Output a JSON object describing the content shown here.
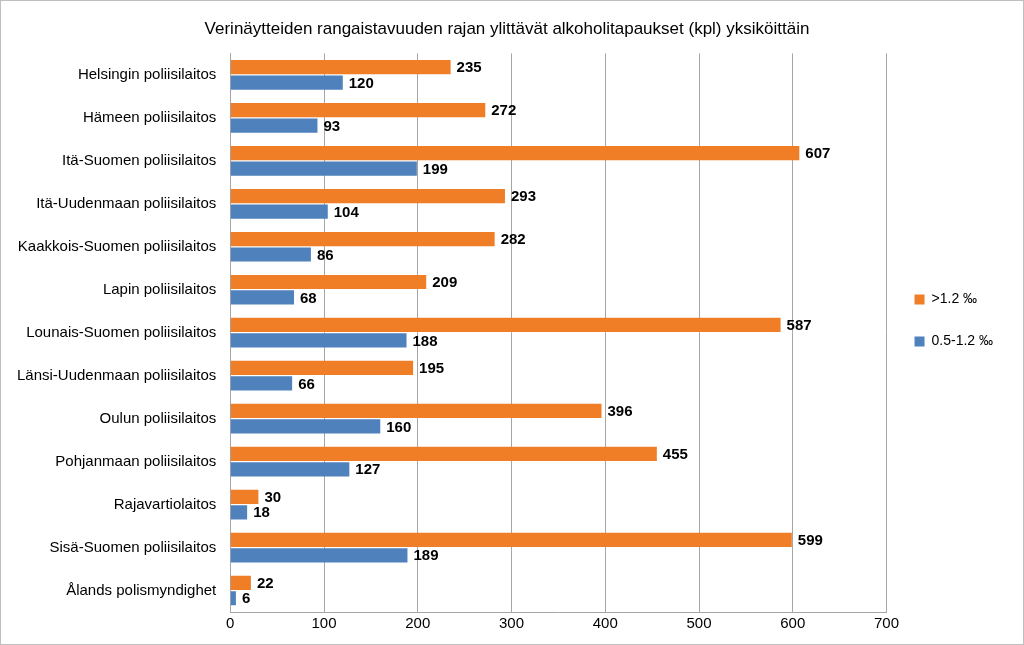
{
  "chart_data": {
    "type": "bar",
    "orientation": "horizontal",
    "title": "Verinäytteiden rangaistavuuden rajan ylittävät alkoholitapaukset (kpl) yksiköittäin",
    "categories": [
      "Helsingin poliisilaitos",
      "Hämeen poliisilaitos",
      "Itä-Suomen poliisilaitos",
      "Itä-Uudenmaan poliisilaitos",
      "Kaakkois-Suomen poliisilaitos",
      "Lapin poliisilaitos",
      "Lounais-Suomen poliisilaitos",
      "Länsi-Uudenmaan poliisilaitos",
      "Oulun poliisilaitos",
      "Pohjanmaan poliisilaitos",
      "Rajavartiolaitos",
      "Sisä-Suomen poliisilaitos",
      "Ålands polismyndighet"
    ],
    "series": [
      {
        "name": ">1.2 ‰",
        "color": "#F07E26",
        "values": [
          235,
          272,
          607,
          293,
          282,
          209,
          587,
          195,
          396,
          455,
          30,
          599,
          22
        ]
      },
      {
        "name": "0.5-1.2 ‰",
        "color": "#4F81BD",
        "values": [
          120,
          93,
          199,
          104,
          86,
          68,
          188,
          66,
          160,
          127,
          18,
          189,
          6
        ]
      }
    ],
    "xlim": [
      0,
      700
    ],
    "xticks": [
      0,
      100,
      200,
      300,
      400,
      500,
      600,
      700
    ],
    "grid": true,
    "legend": "right",
    "data_labels": true
  }
}
